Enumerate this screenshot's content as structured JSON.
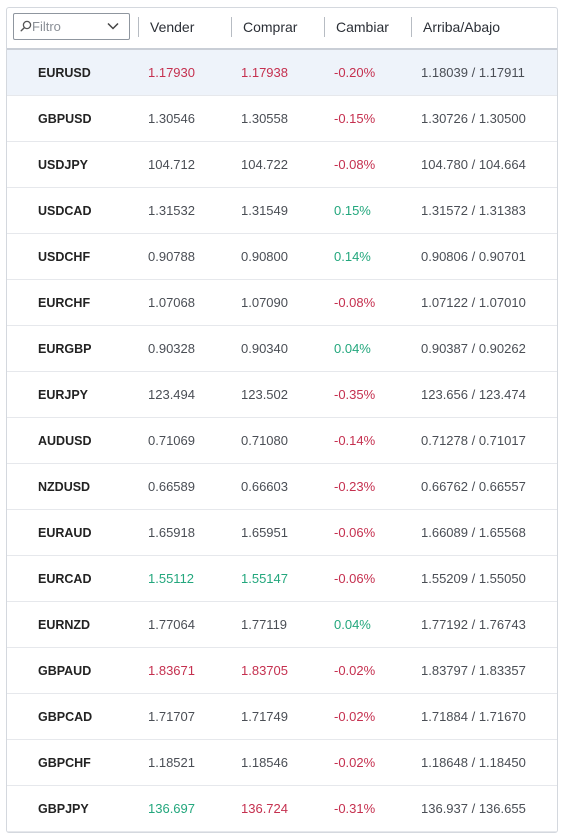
{
  "header": {
    "filter_placeholder": "Filtro",
    "columns": [
      "Vender",
      "Comprar",
      "Cambiar",
      "Arriba/Abajo"
    ]
  },
  "colors": {
    "up": "#23a77d",
    "down": "#c5304f",
    "neutral": "#4a4e55",
    "selected_row": "#eef3fa"
  },
  "rows": [
    {
      "symbol": "EURUSD",
      "bid": "1.17930",
      "bid_dir": "down",
      "ask": "1.17938",
      "ask_dir": "down",
      "change": "-0.20%",
      "change_dir": "down",
      "range": "1.18039 / 1.17911",
      "selected": true
    },
    {
      "symbol": "GBPUSD",
      "bid": "1.30546",
      "bid_dir": "neutral",
      "ask": "1.30558",
      "ask_dir": "neutral",
      "change": "-0.15%",
      "change_dir": "down",
      "range": "1.30726 / 1.30500"
    },
    {
      "symbol": "USDJPY",
      "bid": "104.712",
      "bid_dir": "neutral",
      "ask": "104.722",
      "ask_dir": "neutral",
      "change": "-0.08%",
      "change_dir": "down",
      "range": "104.780 / 104.664"
    },
    {
      "symbol": "USDCAD",
      "bid": "1.31532",
      "bid_dir": "neutral",
      "ask": "1.31549",
      "ask_dir": "neutral",
      "change": "0.15%",
      "change_dir": "up",
      "range": "1.31572 / 1.31383"
    },
    {
      "symbol": "USDCHF",
      "bid": "0.90788",
      "bid_dir": "neutral",
      "ask": "0.90800",
      "ask_dir": "neutral",
      "change": "0.14%",
      "change_dir": "up",
      "range": "0.90806 / 0.90701"
    },
    {
      "symbol": "EURCHF",
      "bid": "1.07068",
      "bid_dir": "neutral",
      "ask": "1.07090",
      "ask_dir": "neutral",
      "change": "-0.08%",
      "change_dir": "down",
      "range": "1.07122 / 1.07010"
    },
    {
      "symbol": "EURGBP",
      "bid": "0.90328",
      "bid_dir": "neutral",
      "ask": "0.90340",
      "ask_dir": "neutral",
      "change": "0.04%",
      "change_dir": "up",
      "range": "0.90387 / 0.90262"
    },
    {
      "symbol": "EURJPY",
      "bid": "123.494",
      "bid_dir": "neutral",
      "ask": "123.502",
      "ask_dir": "neutral",
      "change": "-0.35%",
      "change_dir": "down",
      "range": "123.656 / 123.474"
    },
    {
      "symbol": "AUDUSD",
      "bid": "0.71069",
      "bid_dir": "neutral",
      "ask": "0.71080",
      "ask_dir": "neutral",
      "change": "-0.14%",
      "change_dir": "down",
      "range": "0.71278 / 0.71017"
    },
    {
      "symbol": "NZDUSD",
      "bid": "0.66589",
      "bid_dir": "neutral",
      "ask": "0.66603",
      "ask_dir": "neutral",
      "change": "-0.23%",
      "change_dir": "down",
      "range": "0.66762 / 0.66557"
    },
    {
      "symbol": "EURAUD",
      "bid": "1.65918",
      "bid_dir": "neutral",
      "ask": "1.65951",
      "ask_dir": "neutral",
      "change": "-0.06%",
      "change_dir": "down",
      "range": "1.66089 / 1.65568"
    },
    {
      "symbol": "EURCAD",
      "bid": "1.55112",
      "bid_dir": "up",
      "ask": "1.55147",
      "ask_dir": "up",
      "change": "-0.06%",
      "change_dir": "down",
      "range": "1.55209 / 1.55050"
    },
    {
      "symbol": "EURNZD",
      "bid": "1.77064",
      "bid_dir": "neutral",
      "ask": "1.77119",
      "ask_dir": "neutral",
      "change": "0.04%",
      "change_dir": "up",
      "range": "1.77192 / 1.76743"
    },
    {
      "symbol": "GBPAUD",
      "bid": "1.83671",
      "bid_dir": "down",
      "ask": "1.83705",
      "ask_dir": "down",
      "change": "-0.02%",
      "change_dir": "down",
      "range": "1.83797 / 1.83357"
    },
    {
      "symbol": "GBPCAD",
      "bid": "1.71707",
      "bid_dir": "neutral",
      "ask": "1.71749",
      "ask_dir": "neutral",
      "change": "-0.02%",
      "change_dir": "down",
      "range": "1.71884 / 1.71670"
    },
    {
      "symbol": "GBPCHF",
      "bid": "1.18521",
      "bid_dir": "neutral",
      "ask": "1.18546",
      "ask_dir": "neutral",
      "change": "-0.02%",
      "change_dir": "down",
      "range": "1.18648 / 1.18450"
    },
    {
      "symbol": "GBPJPY",
      "bid": "136.697",
      "bid_dir": "up",
      "ask": "136.724",
      "ask_dir": "down",
      "change": "-0.31%",
      "change_dir": "down",
      "range": "136.937 / 136.655"
    }
  ]
}
